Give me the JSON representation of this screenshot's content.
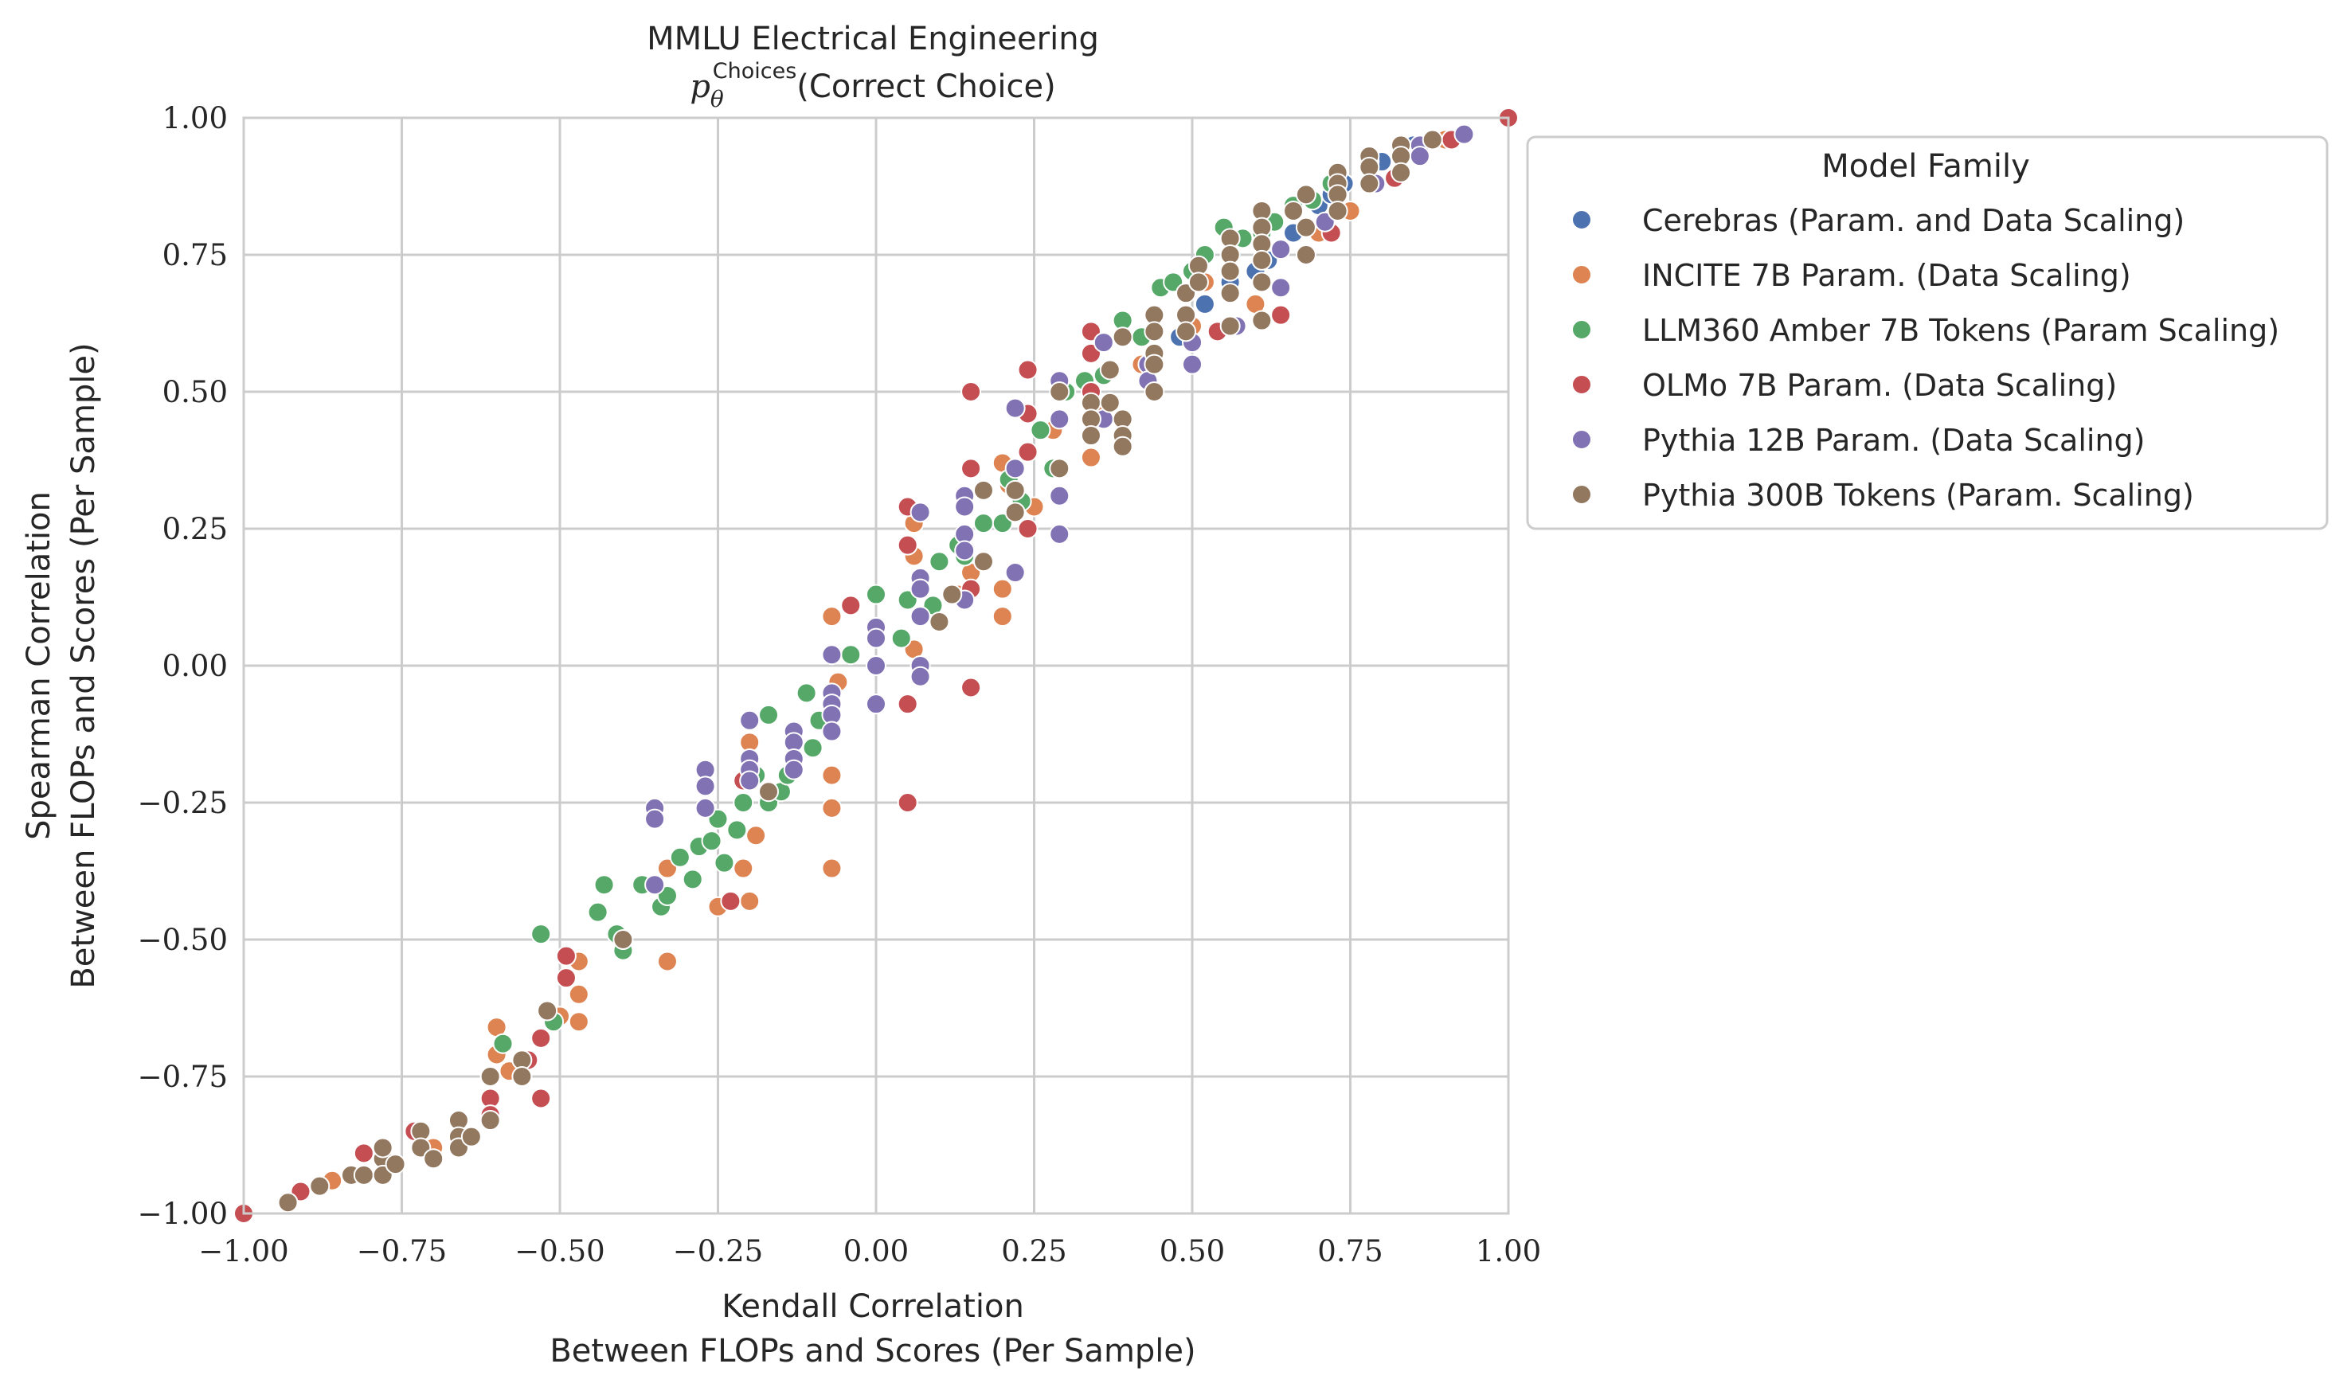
{
  "chart_data": {
    "type": "scatter",
    "title": "MMLU Electrical Engineering",
    "subtitle_prefix": "p",
    "subtitle_subscript": "θ",
    "subtitle_superscript": "Choices",
    "subtitle_rest": "(Correct Choice)",
    "xlabel_line1": "Kendall Correlation",
    "xlabel_line2": "Between FLOPs and Scores (Per Sample)",
    "ylabel_line1": "Spearman Correlation",
    "ylabel_line2": "Between FLOPs and Scores (Per Sample)",
    "xlim": [
      -1.0,
      1.0
    ],
    "ylim": [
      -1.0,
      1.0
    ],
    "xticks": [
      -1.0,
      -0.75,
      -0.5,
      -0.25,
      0.0,
      0.25,
      0.5,
      0.75,
      1.0
    ],
    "yticks": [
      -1.0,
      -0.75,
      -0.5,
      -0.25,
      0.0,
      0.25,
      0.5,
      0.75,
      1.0
    ],
    "xtick_labels": [
      "−1.00",
      "−0.75",
      "−0.50",
      "−0.25",
      "0.00",
      "0.25",
      "0.50",
      "0.75",
      "1.00"
    ],
    "ytick_labels": [
      "−1.00",
      "−0.75",
      "−0.50",
      "−0.25",
      "0.00",
      "0.25",
      "0.50",
      "0.75",
      "1.00"
    ],
    "grid": true,
    "legend_title": "Model Family",
    "legend_position": "outside-right",
    "series": [
      {
        "name": "Cerebras (Param. and Data Scaling)",
        "color": "#4c72b0",
        "points": [
          [
            0.48,
            0.6
          ],
          [
            0.52,
            0.66
          ],
          [
            0.56,
            0.7
          ],
          [
            0.62,
            0.74
          ],
          [
            0.66,
            0.79
          ],
          [
            0.7,
            0.84
          ],
          [
            0.74,
            0.88
          ],
          [
            0.8,
            0.92
          ],
          [
            0.85,
            0.95
          ],
          [
            0.44,
            0.56
          ],
          [
            0.6,
            0.72
          ],
          [
            0.72,
            0.86
          ]
        ]
      },
      {
        "name": "INCITE 7B Param. (Data Scaling)",
        "color": "#dd8452",
        "points": [
          [
            -0.86,
            -0.94
          ],
          [
            -0.78,
            -0.9
          ],
          [
            -0.7,
            -0.88
          ],
          [
            -0.6,
            -0.66
          ],
          [
            -0.6,
            -0.71
          ],
          [
            -0.58,
            -0.74
          ],
          [
            -0.5,
            -0.64
          ],
          [
            -0.47,
            -0.54
          ],
          [
            -0.47,
            -0.6
          ],
          [
            -0.47,
            -0.65
          ],
          [
            -0.4,
            -0.51
          ],
          [
            -0.33,
            -0.54
          ],
          [
            -0.33,
            -0.37
          ],
          [
            -0.25,
            -0.44
          ],
          [
            -0.21,
            -0.37
          ],
          [
            -0.2,
            -0.14
          ],
          [
            -0.2,
            -0.43
          ],
          [
            -0.19,
            -0.31
          ],
          [
            -0.07,
            -0.2
          ],
          [
            -0.07,
            -0.26
          ],
          [
            -0.07,
            -0.37
          ],
          [
            -0.07,
            0.09
          ],
          [
            -0.06,
            -0.03
          ],
          [
            0.06,
            0.26
          ],
          [
            0.06,
            0.2
          ],
          [
            0.06,
            0.03
          ],
          [
            0.13,
            0.13
          ],
          [
            0.15,
            0.17
          ],
          [
            0.2,
            0.09
          ],
          [
            0.2,
            0.14
          ],
          [
            0.2,
            0.37
          ],
          [
            0.21,
            0.33
          ],
          [
            0.25,
            0.29
          ],
          [
            0.28,
            0.43
          ],
          [
            0.34,
            0.38
          ],
          [
            0.42,
            0.55
          ],
          [
            0.5,
            0.62
          ],
          [
            0.6,
            0.66
          ],
          [
            0.7,
            0.79
          ],
          [
            0.75,
            0.83
          ],
          [
            0.86,
            0.94
          ],
          [
            0.9,
            0.96
          ],
          [
            0.36,
            0.47
          ],
          [
            0.52,
            0.7
          ]
        ]
      },
      {
        "name": "LLM360 Amber 7B Tokens (Param Scaling)",
        "color": "#55a868",
        "points": [
          [
            -0.61,
            -0.75
          ],
          [
            -0.59,
            -0.69
          ],
          [
            -0.55,
            -0.72
          ],
          [
            -0.51,
            -0.65
          ],
          [
            -0.53,
            -0.49
          ],
          [
            -0.44,
            -0.45
          ],
          [
            -0.41,
            -0.49
          ],
          [
            -0.43,
            -0.4
          ],
          [
            -0.4,
            -0.52
          ],
          [
            -0.37,
            -0.4
          ],
          [
            -0.34,
            -0.44
          ],
          [
            -0.33,
            -0.42
          ],
          [
            -0.31,
            -0.35
          ],
          [
            -0.29,
            -0.39
          ],
          [
            -0.28,
            -0.33
          ],
          [
            -0.26,
            -0.32
          ],
          [
            -0.25,
            -0.28
          ],
          [
            -0.24,
            -0.36
          ],
          [
            -0.22,
            -0.3
          ],
          [
            -0.21,
            -0.25
          ],
          [
            -0.19,
            -0.2
          ],
          [
            -0.17,
            -0.09
          ],
          [
            -0.17,
            -0.25
          ],
          [
            -0.15,
            -0.23
          ],
          [
            -0.14,
            -0.2
          ],
          [
            -0.13,
            -0.13
          ],
          [
            -0.11,
            -0.05
          ],
          [
            -0.1,
            -0.15
          ],
          [
            -0.09,
            -0.1
          ],
          [
            -0.07,
            -0.08
          ],
          [
            -0.04,
            0.02
          ],
          [
            0.0,
            0.13
          ],
          [
            0.04,
            0.05
          ],
          [
            0.05,
            0.12
          ],
          [
            0.09,
            0.11
          ],
          [
            0.1,
            0.19
          ],
          [
            0.13,
            0.22
          ],
          [
            0.14,
            0.2
          ],
          [
            0.17,
            0.26
          ],
          [
            0.2,
            0.26
          ],
          [
            0.21,
            0.34
          ],
          [
            0.23,
            0.3
          ],
          [
            0.26,
            0.43
          ],
          [
            0.28,
            0.36
          ],
          [
            0.3,
            0.5
          ],
          [
            0.33,
            0.52
          ],
          [
            0.36,
            0.53
          ],
          [
            0.39,
            0.63
          ],
          [
            0.42,
            0.6
          ],
          [
            0.45,
            0.69
          ],
          [
            0.47,
            0.7
          ],
          [
            0.5,
            0.72
          ],
          [
            0.52,
            0.75
          ],
          [
            0.55,
            0.8
          ],
          [
            0.58,
            0.78
          ],
          [
            0.61,
            0.79
          ],
          [
            0.63,
            0.81
          ],
          [
            0.66,
            0.84
          ],
          [
            0.69,
            0.85
          ],
          [
            0.72,
            0.88
          ],
          [
            0.78,
            0.92
          ]
        ]
      },
      {
        "name": "OLMo 7B Param. (Data Scaling)",
        "color": "#c44e52",
        "points": [
          [
            -1.0,
            -1.0
          ],
          [
            -0.91,
            -0.96
          ],
          [
            -0.81,
            -0.89
          ],
          [
            -0.73,
            -0.85
          ],
          [
            -0.61,
            -0.79
          ],
          [
            -0.61,
            -0.82
          ],
          [
            -0.53,
            -0.79
          ],
          [
            -0.53,
            -0.68
          ],
          [
            -0.55,
            -0.72
          ],
          [
            -0.49,
            -0.53
          ],
          [
            -0.49,
            -0.57
          ],
          [
            -0.23,
            -0.43
          ],
          [
            -0.21,
            -0.21
          ],
          [
            -0.04,
            0.11
          ],
          [
            0.05,
            0.29
          ],
          [
            0.05,
            0.22
          ],
          [
            0.05,
            -0.07
          ],
          [
            0.05,
            -0.25
          ],
          [
            0.15,
            0.5
          ],
          [
            0.15,
            0.36
          ],
          [
            0.15,
            0.14
          ],
          [
            0.15,
            -0.04
          ],
          [
            0.24,
            0.54
          ],
          [
            0.24,
            0.46
          ],
          [
            0.24,
            0.39
          ],
          [
            0.24,
            0.25
          ],
          [
            0.34,
            0.61
          ],
          [
            0.34,
            0.57
          ],
          [
            0.34,
            0.5
          ],
          [
            0.44,
            0.64
          ],
          [
            0.54,
            0.61
          ],
          [
            0.64,
            0.64
          ],
          [
            0.72,
            0.79
          ],
          [
            0.82,
            0.89
          ],
          [
            0.91,
            0.96
          ],
          [
            1.0,
            1.0
          ]
        ]
      },
      {
        "name": "Pythia 12B Param. (Data Scaling)",
        "color": "#8172b3",
        "points": [
          [
            -0.35,
            -0.26
          ],
          [
            -0.35,
            -0.28
          ],
          [
            -0.35,
            -0.4
          ],
          [
            -0.27,
            -0.19
          ],
          [
            -0.27,
            -0.22
          ],
          [
            -0.27,
            -0.26
          ],
          [
            -0.2,
            -0.1
          ],
          [
            -0.2,
            -0.17
          ],
          [
            -0.2,
            -0.19
          ],
          [
            -0.2,
            -0.21
          ],
          [
            -0.13,
            -0.12
          ],
          [
            -0.13,
            -0.14
          ],
          [
            -0.13,
            -0.17
          ],
          [
            -0.13,
            -0.19
          ],
          [
            -0.07,
            0.02
          ],
          [
            -0.07,
            -0.05
          ],
          [
            -0.07,
            -0.07
          ],
          [
            -0.07,
            -0.09
          ],
          [
            -0.07,
            -0.12
          ],
          [
            0.0,
            0.07
          ],
          [
            0.0,
            0.05
          ],
          [
            0.0,
            0.0
          ],
          [
            0.0,
            -0.07
          ],
          [
            0.07,
            0.28
          ],
          [
            0.07,
            0.16
          ],
          [
            0.07,
            0.14
          ],
          [
            0.07,
            0.09
          ],
          [
            0.07,
            0.0
          ],
          [
            0.07,
            -0.02
          ],
          [
            0.14,
            0.31
          ],
          [
            0.14,
            0.29
          ],
          [
            0.14,
            0.24
          ],
          [
            0.14,
            0.21
          ],
          [
            0.14,
            0.12
          ],
          [
            0.22,
            0.47
          ],
          [
            0.22,
            0.36
          ],
          [
            0.22,
            0.17
          ],
          [
            0.29,
            0.52
          ],
          [
            0.29,
            0.45
          ],
          [
            0.29,
            0.31
          ],
          [
            0.29,
            0.24
          ],
          [
            0.36,
            0.59
          ],
          [
            0.36,
            0.45
          ],
          [
            0.43,
            0.55
          ],
          [
            0.43,
            0.52
          ],
          [
            0.5,
            0.59
          ],
          [
            0.5,
            0.55
          ],
          [
            0.57,
            0.62
          ],
          [
            0.64,
            0.76
          ],
          [
            0.64,
            0.69
          ],
          [
            0.71,
            0.81
          ],
          [
            0.79,
            0.88
          ],
          [
            0.86,
            0.95
          ],
          [
            0.86,
            0.93
          ],
          [
            0.93,
            0.97
          ]
        ]
      },
      {
        "name": "Pythia 300B Tokens (Param. Scaling)",
        "color": "#937860",
        "points": [
          [
            -0.93,
            -0.98
          ],
          [
            -0.88,
            -0.95
          ],
          [
            -0.83,
            -0.93
          ],
          [
            -0.81,
            -0.93
          ],
          [
            -0.78,
            -0.9
          ],
          [
            -0.78,
            -0.88
          ],
          [
            -0.78,
            -0.93
          ],
          [
            -0.76,
            -0.91
          ],
          [
            -0.72,
            -0.85
          ],
          [
            -0.72,
            -0.88
          ],
          [
            -0.7,
            -0.9
          ],
          [
            -0.66,
            -0.83
          ],
          [
            -0.66,
            -0.86
          ],
          [
            -0.66,
            -0.88
          ],
          [
            -0.64,
            -0.86
          ],
          [
            -0.61,
            -0.75
          ],
          [
            -0.61,
            -0.83
          ],
          [
            -0.56,
            -0.72
          ],
          [
            -0.56,
            -0.75
          ],
          [
            -0.52,
            -0.63
          ],
          [
            -0.4,
            -0.5
          ],
          [
            -0.17,
            -0.23
          ],
          [
            0.1,
            0.08
          ],
          [
            0.12,
            0.13
          ],
          [
            0.17,
            0.32
          ],
          [
            0.17,
            0.19
          ],
          [
            0.22,
            0.32
          ],
          [
            0.22,
            0.28
          ],
          [
            0.29,
            0.5
          ],
          [
            0.29,
            0.36
          ],
          [
            0.34,
            0.48
          ],
          [
            0.34,
            0.45
          ],
          [
            0.34,
            0.42
          ],
          [
            0.37,
            0.54
          ],
          [
            0.37,
            0.48
          ],
          [
            0.39,
            0.6
          ],
          [
            0.39,
            0.45
          ],
          [
            0.39,
            0.42
          ],
          [
            0.39,
            0.4
          ],
          [
            0.44,
            0.64
          ],
          [
            0.44,
            0.61
          ],
          [
            0.44,
            0.57
          ],
          [
            0.44,
            0.55
          ],
          [
            0.44,
            0.5
          ],
          [
            0.49,
            0.68
          ],
          [
            0.49,
            0.64
          ],
          [
            0.49,
            0.61
          ],
          [
            0.51,
            0.73
          ],
          [
            0.51,
            0.7
          ],
          [
            0.56,
            0.78
          ],
          [
            0.56,
            0.75
          ],
          [
            0.56,
            0.72
          ],
          [
            0.56,
            0.68
          ],
          [
            0.56,
            0.62
          ],
          [
            0.61,
            0.83
          ],
          [
            0.61,
            0.8
          ],
          [
            0.61,
            0.77
          ],
          [
            0.61,
            0.74
          ],
          [
            0.61,
            0.7
          ],
          [
            0.61,
            0.63
          ],
          [
            0.66,
            0.83
          ],
          [
            0.68,
            0.86
          ],
          [
            0.68,
            0.8
          ],
          [
            0.68,
            0.75
          ],
          [
            0.73,
            0.9
          ],
          [
            0.73,
            0.88
          ],
          [
            0.73,
            0.86
          ],
          [
            0.73,
            0.83
          ],
          [
            0.78,
            0.93
          ],
          [
            0.78,
            0.91
          ],
          [
            0.78,
            0.88
          ],
          [
            0.83,
            0.95
          ],
          [
            0.83,
            0.93
          ],
          [
            0.83,
            0.9
          ],
          [
            0.88,
            0.96
          ]
        ]
      }
    ]
  }
}
